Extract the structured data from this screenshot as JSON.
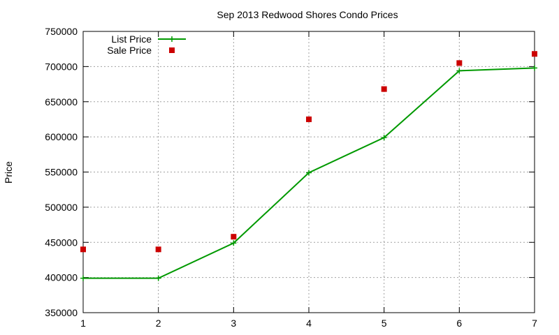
{
  "chart_data": {
    "type": "line",
    "title": "Sep 2013 Redwood Shores Condo Prices",
    "xlabel": "",
    "ylabel": "Price",
    "xlim": [
      1,
      7
    ],
    "ylim": [
      350000,
      750000
    ],
    "x_ticks": [
      "1",
      "2",
      "3",
      "4",
      "5",
      "6",
      "7"
    ],
    "y_ticks": [
      "350000",
      "400000",
      "450000",
      "500000",
      "550000",
      "600000",
      "650000",
      "700000",
      "750000"
    ],
    "grid": true,
    "legend_position": "top-left",
    "x": [
      1,
      2,
      3,
      4,
      5,
      6,
      7
    ],
    "series": [
      {
        "name": "List Price",
        "style": "linespoints",
        "marker": "plus",
        "color": "#009900",
        "values": [
          399000,
          399000,
          449000,
          549000,
          599000,
          694000,
          698000
        ]
      },
      {
        "name": "Sale Price",
        "style": "points",
        "marker": "square",
        "color": "#cc0000",
        "values": [
          440000,
          440000,
          458000,
          625000,
          668000,
          705000,
          718000
        ]
      }
    ]
  }
}
